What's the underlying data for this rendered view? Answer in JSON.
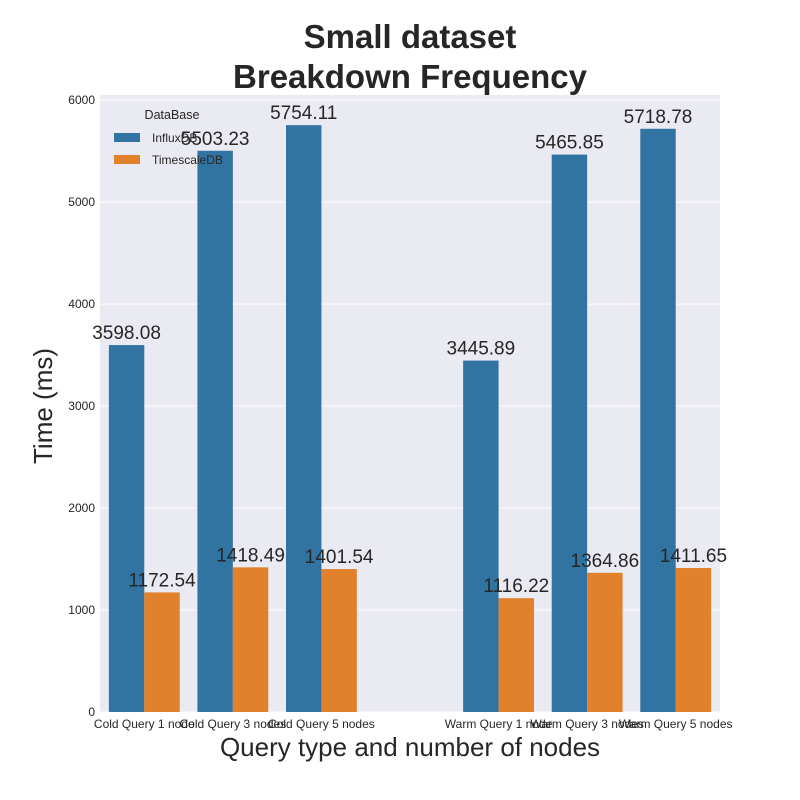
{
  "chart_data": {
    "type": "bar",
    "title_lines": [
      "Small dataset",
      "Breakdown Frequency"
    ],
    "xlabel": "Query type and number of nodes",
    "ylabel": "Time (ms)",
    "categories": [
      "Cold Query 1 node",
      "Cold Query 3 nodes",
      "Cold Query 5 nodes",
      "",
      "Warm Query 1 node",
      "Warm Query 3 nodes",
      "Warm Query 5 nodes"
    ],
    "ylim": [
      0,
      6050
    ],
    "yticks": [
      0,
      1000,
      2000,
      3000,
      4000,
      5000,
      6000
    ],
    "grid": true,
    "legend_title": "DataBase",
    "legend_position": "top-left",
    "series": [
      {
        "name": "InfluxDB",
        "color": "#3274a1",
        "values": [
          3598.08,
          5503.23,
          5754.11,
          null,
          3445.89,
          5465.85,
          5718.78
        ],
        "labels": [
          "3598.08",
          "5503.23",
          "5754.11",
          "",
          "3445.89",
          "5465.85",
          "5718.78"
        ]
      },
      {
        "name": "TimescaleDB",
        "color": "#e1812c",
        "values": [
          1172.54,
          1418.49,
          1401.54,
          null,
          1116.22,
          1364.86,
          1411.65
        ],
        "labels": [
          "1172.54",
          "1418.49",
          "1401.54",
          "",
          "1116.22",
          "1364.86",
          "1411.65"
        ]
      }
    ],
    "colors": {
      "plot_background": "#eaeaf2",
      "grid": "#ffffff",
      "text": "#262626"
    }
  }
}
